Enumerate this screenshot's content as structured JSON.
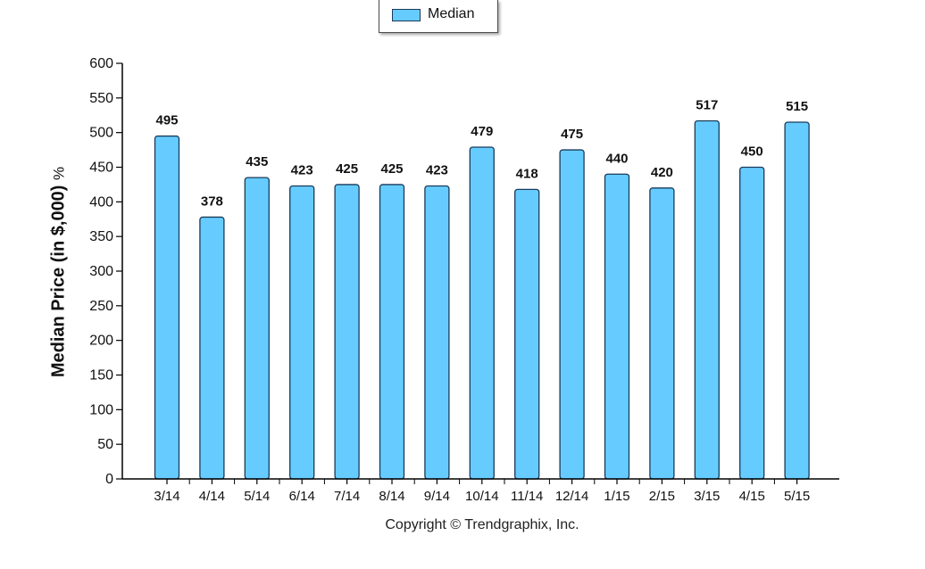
{
  "legend": {
    "label": "Median"
  },
  "footer": {
    "copyright": "Copyright © Trendgraphix, Inc."
  },
  "colors": {
    "bar_fill": "#66ccff",
    "bar_stroke": "#1a3a5a",
    "axis": "#000000"
  },
  "chart_data": {
    "type": "bar",
    "categories": [
      "3/14",
      "4/14",
      "5/14",
      "6/14",
      "7/14",
      "8/14",
      "9/14",
      "10/14",
      "11/14",
      "12/14",
      "1/15",
      "2/15",
      "3/15",
      "4/15",
      "5/15"
    ],
    "series": [
      {
        "name": "Median",
        "values": [
          495,
          378,
          435,
          423,
          425,
          425,
          423,
          479,
          418,
          475,
          440,
          420,
          517,
          450,
          515
        ]
      }
    ],
    "ylabel": "Median Price (in $,000)",
    "ylabel_unit": "%",
    "xlabel": "",
    "ylim": [
      0,
      600
    ],
    "yticks": [
      0,
      50,
      100,
      150,
      200,
      250,
      300,
      350,
      400,
      450,
      500,
      550,
      600
    ],
    "grid": false,
    "legend_position": "top-center",
    "data_labels": true
  }
}
